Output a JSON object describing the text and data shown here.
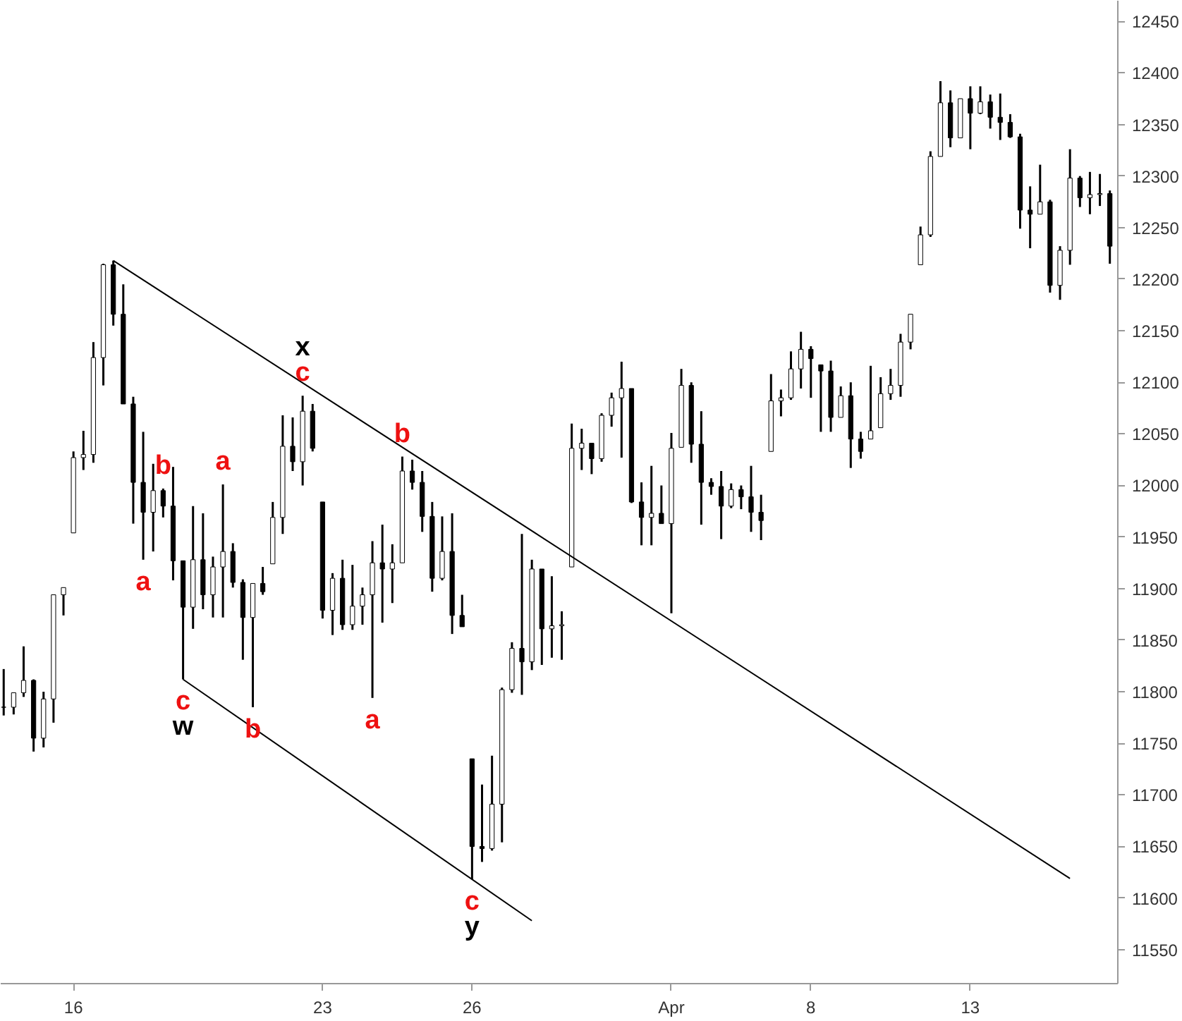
{
  "chart_data": {
    "type": "candlestick",
    "categories": [
      null,
      null,
      null,
      null,
      null,
      null,
      null,
      "16",
      null,
      null,
      null,
      null,
      null,
      null,
      null,
      null,
      null,
      null,
      null,
      null,
      null,
      null,
      null,
      null,
      null,
      null,
      null,
      null,
      null,
      null,
      null,
      null,
      "23",
      null,
      null,
      null,
      null,
      null,
      null,
      null,
      null,
      null,
      null,
      null,
      null,
      null,
      null,
      "26",
      null,
      null,
      null,
      null,
      null,
      null,
      null,
      null,
      null,
      null,
      null,
      null,
      null,
      null,
      null,
      null,
      null,
      null,
      null,
      "Apr",
      null,
      null,
      null,
      null,
      null,
      null,
      null,
      null,
      null,
      null,
      null,
      null,
      null,
      "8",
      null,
      null,
      null,
      null,
      null,
      null,
      null,
      null,
      null,
      null,
      null,
      null,
      null,
      null,
      null,
      "13",
      null,
      null,
      null,
      null,
      null,
      null,
      null,
      null,
      null,
      null,
      null,
      null,
      null,
      null
    ],
    "ohlc": [
      [
        11785,
        11822,
        11777,
        11785
      ],
      [
        11785,
        11799,
        11778,
        11799
      ],
      [
        11799,
        11844,
        11795,
        11811
      ],
      [
        11811,
        11812,
        11742,
        11755
      ],
      [
        11755,
        11800,
        11746,
        11793
      ],
      [
        11793,
        11894,
        11770,
        11894
      ],
      [
        11894,
        11901,
        11874,
        11901
      ],
      [
        11954,
        12033,
        11954,
        12027
      ],
      [
        12027,
        12053,
        12015,
        12030
      ],
      [
        12030,
        12139,
        12022,
        12124
      ],
      [
        12124,
        12215,
        12097,
        12214
      ],
      [
        12214,
        12218,
        12155,
        12166
      ],
      [
        12166,
        12195,
        12079,
        12079
      ],
      [
        12079,
        12086,
        11963,
        12003
      ],
      [
        12003,
        12052,
        11928,
        11974
      ],
      [
        11974,
        12021,
        11936,
        11995
      ],
      [
        11995,
        11997,
        11969,
        11980
      ],
      [
        11980,
        12018,
        11908,
        11927
      ],
      [
        11927,
        11927,
        11812,
        11882
      ],
      [
        11882,
        11980,
        11861,
        11928
      ],
      [
        11928,
        11973,
        11880,
        11894
      ],
      [
        11894,
        11931,
        11872,
        11921
      ],
      [
        11921,
        12001,
        11872,
        11936
      ],
      [
        11936,
        11944,
        11901,
        11906
      ],
      [
        11906,
        11909,
        11831,
        11872
      ],
      [
        11872,
        11905,
        11785,
        11905
      ],
      [
        11905,
        11921,
        11894,
        11897
      ],
      [
        11924,
        11984,
        11924,
        11969
      ],
      [
        11969,
        12068,
        11953,
        12038
      ],
      [
        12038,
        12066,
        12014,
        12023
      ],
      [
        12023,
        12087,
        12000,
        12072
      ],
      [
        12072,
        12079,
        12033,
        12036
      ],
      [
        11984,
        11984,
        11871,
        11879
      ],
      [
        11879,
        11915,
        11855,
        11910
      ],
      [
        11910,
        11928,
        11860,
        11865
      ],
      [
        11865,
        11923,
        11860,
        11883
      ],
      [
        11883,
        11901,
        11865,
        11894
      ],
      [
        11894,
        11946,
        11794,
        11925
      ],
      [
        11925,
        11962,
        11867,
        11919
      ],
      [
        11919,
        11943,
        11886,
        11925
      ],
      [
        11925,
        12028,
        11925,
        12014
      ],
      [
        12014,
        12025,
        11996,
        12003
      ],
      [
        12003,
        12014,
        11955,
        11970
      ],
      [
        11970,
        11984,
        11897,
        11910
      ],
      [
        11910,
        11970,
        11908,
        11936
      ],
      [
        11936,
        11973,
        11856,
        11874
      ],
      [
        11874,
        11894,
        11863,
        11863
      ],
      [
        11735,
        11735,
        11618,
        11650
      ],
      [
        11650,
        11710,
        11635,
        11648
      ],
      [
        11648,
        11738,
        11646,
        11691
      ],
      [
        11691,
        11804,
        11654,
        11802
      ],
      [
        11802,
        11848,
        11799,
        11842
      ],
      [
        11842,
        11953,
        11797,
        11829
      ],
      [
        11829,
        11928,
        11821,
        11919
      ],
      [
        11919,
        11919,
        11826,
        11861
      ],
      [
        11861,
        11912,
        11833,
        11864
      ],
      [
        11864,
        11878,
        11831,
        11865
      ],
      [
        11921,
        12060,
        11921,
        12036
      ],
      [
        12036,
        12055,
        12015,
        12041
      ],
      [
        12041,
        12041,
        12011,
        12026
      ],
      [
        12026,
        12070,
        12023,
        12068
      ],
      [
        12068,
        12090,
        12057,
        12085
      ],
      [
        12085,
        12120,
        12027,
        12094
      ],
      [
        12094,
        12094,
        11983,
        11984
      ],
      [
        11984,
        12003,
        11942,
        11969
      ],
      [
        11969,
        12019,
        11942,
        11973
      ],
      [
        11973,
        12000,
        11963,
        11963
      ],
      [
        11963,
        12051,
        11876,
        12036
      ],
      [
        12037,
        12113,
        12037,
        12097
      ],
      [
        12097,
        12100,
        12022,
        12040
      ],
      [
        12040,
        12072,
        11962,
        12003
      ],
      [
        12003,
        12007,
        11991,
        11999
      ],
      [
        11999,
        12014,
        11948,
        11980
      ],
      [
        11980,
        12002,
        11978,
        11996
      ],
      [
        11996,
        12000,
        11977,
        11989
      ],
      [
        11989,
        12019,
        11955,
        11974
      ],
      [
        11974,
        11991,
        11947,
        11966
      ],
      [
        12033,
        12108,
        12033,
        12082
      ],
      [
        12082,
        12093,
        12067,
        12085
      ],
      [
        12085,
        12130,
        12083,
        12113
      ],
      [
        12113,
        12149,
        12094,
        12132
      ],
      [
        12132,
        12135,
        12085,
        12123
      ],
      [
        12117,
        12117,
        12052,
        12111
      ],
      [
        12111,
        12121,
        12052,
        12066
      ],
      [
        12066,
        12096,
        12066,
        12087
      ],
      [
        12087,
        12100,
        12017,
        12045
      ],
      [
        12045,
        12052,
        12026,
        12033
      ],
      [
        12045,
        12116,
        12045,
        12053
      ],
      [
        12056,
        12105,
        12056,
        12089
      ],
      [
        12089,
        12113,
        12083,
        12097
      ],
      [
        12097,
        12147,
        12086,
        12139
      ],
      [
        12139,
        12166,
        12132,
        12166
      ],
      [
        12214,
        12251,
        12214,
        12243
      ],
      [
        12243,
        12324,
        12241,
        12319
      ],
      [
        12319,
        12392,
        12319,
        12371
      ],
      [
        12371,
        12383,
        12328,
        12337
      ],
      [
        12337,
        12375,
        12337,
        12375
      ],
      [
        12375,
        12387,
        12326,
        12361
      ],
      [
        12361,
        12387,
        12360,
        12372
      ],
      [
        12372,
        12379,
        12346,
        12357
      ],
      [
        12357,
        12380,
        12335,
        12352
      ],
      [
        12352,
        12360,
        12337,
        12338
      ],
      [
        12338,
        12341,
        12249,
        12267
      ],
      [
        12267,
        12290,
        12230,
        12263
      ],
      [
        12263,
        12311,
        12263,
        12275
      ],
      [
        12275,
        12277,
        12187,
        12194
      ],
      [
        12194,
        12232,
        12180,
        12228
      ],
      [
        12228,
        12326,
        12214,
        12298
      ],
      [
        12298,
        12300,
        12270,
        12279
      ],
      [
        12279,
        12304,
        12263,
        12282
      ],
      [
        12282,
        12302,
        12271,
        12283
      ],
      [
        12283,
        12286,
        12215,
        12232
      ]
    ],
    "color": "#000000",
    "series": [
      {
        "type": "line",
        "color": "#000000",
        "values": [
          null,
          null,
          null,
          null,
          null,
          null,
          null,
          null,
          null,
          null,
          null,
          12218,
          null,
          null,
          null,
          null,
          null,
          null,
          null,
          null,
          null,
          null,
          null,
          null,
          null,
          null,
          null,
          null,
          null,
          null,
          null,
          null,
          null,
          null,
          null,
          null,
          null,
          null,
          null,
          null,
          null,
          null,
          null,
          null,
          null,
          null,
          null,
          null,
          null,
          null,
          null,
          null,
          null,
          null,
          null,
          null,
          null,
          null,
          null,
          null,
          null,
          null,
          null,
          null,
          null,
          null,
          null,
          null,
          null,
          null,
          null,
          null,
          null,
          null,
          null,
          null,
          null,
          null,
          null,
          null,
          null,
          null,
          null,
          null,
          null,
          null,
          null,
          null,
          null,
          null,
          null,
          null,
          null,
          null,
          null,
          null,
          null,
          null,
          null,
          null,
          null,
          null,
          null,
          null,
          null,
          null,
          null,
          11619,
          null,
          null,
          null,
          null
        ]
      },
      {
        "type": "line",
        "color": "#000000",
        "values": [
          null,
          null,
          null,
          null,
          null,
          null,
          null,
          null,
          null,
          null,
          null,
          null,
          null,
          null,
          null,
          null,
          null,
          null,
          11812,
          null,
          null,
          null,
          null,
          null,
          null,
          null,
          null,
          null,
          null,
          null,
          null,
          null,
          null,
          null,
          null,
          null,
          null,
          null,
          null,
          null,
          null,
          null,
          null,
          null,
          null,
          null,
          null,
          null,
          null,
          null,
          null,
          null,
          null,
          11578,
          null,
          null,
          null,
          null,
          null,
          null,
          null,
          null,
          null,
          null,
          null,
          null,
          null,
          null,
          null,
          null,
          null,
          null,
          null,
          null,
          null,
          null,
          null,
          null,
          null,
          null,
          null,
          null,
          null,
          null,
          null,
          null,
          null,
          null,
          null,
          null,
          null,
          null,
          null,
          null,
          null,
          null,
          null,
          null,
          null,
          null,
          null,
          null,
          null,
          null,
          null,
          null,
          null,
          null,
          null,
          null,
          null,
          null
        ]
      }
    ],
    "ylim": [
      11517,
      12470
    ],
    "yticks": [
      11550,
      11600,
      11650,
      11700,
      11750,
      11800,
      11850,
      11900,
      11950,
      12000,
      12050,
      12100,
      12150,
      12200,
      12250,
      12300,
      12350,
      12400,
      12450
    ],
    "annotations": [
      {
        "text": "a",
        "y": 11928
      },
      {
        "text": "b",
        "y": 11997
      },
      {
        "text": "c",
        "y": 11812
      },
      {
        "text": "w",
        "y": 11812
      },
      {
        "text": "a",
        "y": 12001
      },
      {
        "text": "b",
        "y": 11785
      },
      {
        "text": "c",
        "y": 12087
      },
      {
        "text": "x",
        "y": 12087
      },
      {
        "text": "b",
        "y": 12028
      },
      {
        "text": "a",
        "y": 11794
      },
      {
        "text": "c",
        "y": 11618
      },
      {
        "text": "y",
        "y": 11618
      }
    ]
  }
}
